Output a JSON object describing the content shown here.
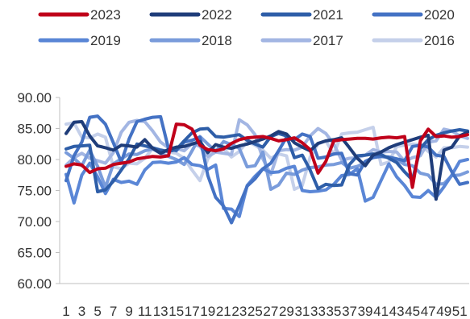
{
  "chart_data": {
    "type": "line",
    "title": "",
    "xlabel": "",
    "ylabel": "",
    "ylim": [
      60,
      90
    ],
    "yticks": [
      "60.00",
      "65.00",
      "70.00",
      "75.00",
      "80.00",
      "85.00",
      "90.00"
    ],
    "x": [
      1,
      2,
      3,
      4,
      5,
      6,
      7,
      8,
      9,
      10,
      11,
      12,
      13,
      14,
      15,
      16,
      17,
      18,
      19,
      20,
      21,
      22,
      23,
      24,
      25,
      26,
      27,
      28,
      29,
      30,
      31,
      32,
      33,
      34,
      35,
      36,
      37,
      38,
      39,
      40,
      41,
      42,
      43,
      44,
      45,
      46,
      47,
      48,
      49,
      50,
      51,
      52
    ],
    "xticks": [
      "1",
      "3",
      "5",
      "7",
      "9",
      "11",
      "13",
      "15",
      "17",
      "19",
      "21",
      "23",
      "25",
      "27",
      "29",
      "31",
      "33",
      "35",
      "37",
      "39",
      "41",
      "43",
      "45",
      "47",
      "49",
      "51"
    ],
    "grid": false,
    "legend_position": "top",
    "series": [
      {
        "name": "2023",
        "color": "#c0001a",
        "values": [
          78.9,
          79.3,
          79.1,
          77.9,
          78.5,
          78.6,
          79.2,
          79.4,
          79.6,
          80.1,
          80.3,
          80.5,
          80.4,
          80.6,
          85.7,
          85.6,
          84.9,
          82.3,
          81.6,
          81.4,
          81.7,
          82.6,
          83.2,
          83.5,
          83.6,
          83.7,
          83.4,
          83.0,
          83.2,
          83.5,
          82.7,
          81.6,
          77.8,
          79.7,
          83.0,
          83.2,
          83.3,
          83.4,
          83.4,
          83.3,
          83.5,
          83.6,
          83.5,
          83.7,
          75.5,
          83.0,
          84.9,
          83.7,
          83.8,
          83.6,
          83.7,
          84.0
        ]
      },
      {
        "name": "2022",
        "color": "#1f3d7a",
        "values": [
          84.2,
          86.0,
          86.1,
          83.8,
          82.2,
          81.9,
          81.5,
          82.3,
          82.2,
          82.0,
          83.2,
          81.8,
          81.0,
          81.6,
          82.0,
          82.1,
          82.5,
          82.9,
          81.1,
          82.4,
          82.0,
          81.8,
          82.2,
          82.5,
          82.9,
          83.3,
          83.8,
          84.5,
          84.1,
          82.7,
          82.0,
          81.4,
          82.6,
          83.0,
          83.2,
          83.5,
          81.9,
          80.2,
          79.0,
          80.7,
          81.2,
          81.9,
          82.4,
          82.8,
          83.2,
          83.6,
          83.9,
          73.6,
          81.5,
          82.0,
          83.8,
          84.4
        ]
      },
      {
        "name": "2021",
        "color": "#2e5ea8",
        "values": [
          81.7,
          82.1,
          82.2,
          82.3,
          74.8,
          75.1,
          76.5,
          78.3,
          80.1,
          82.5,
          82.2,
          81.9,
          81.5,
          81.3,
          81.6,
          83.0,
          84.3,
          84.9,
          85.0,
          83.7,
          83.6,
          83.8,
          84.0,
          83.1,
          82.5,
          82.0,
          83.7,
          84.2,
          83.8,
          80.3,
          80.7,
          78.3,
          75.3,
          76.0,
          75.8,
          75.9,
          79.2,
          80.6,
          80.7,
          80.9,
          80.8,
          80.2,
          79.5,
          78.0,
          76.7,
          81.8,
          83.2,
          83.9,
          84.3,
          84.6,
          84.8,
          84.6
        ]
      },
      {
        "name": "2020",
        "color": "#4472c4",
        "values": [
          76.6,
          80.6,
          82.8,
          86.8,
          87.0,
          85.7,
          82.7,
          79.6,
          83.3,
          86.1,
          86.5,
          86.8,
          86.9,
          81.8,
          81.4,
          82.8,
          83.1,
          83.6,
          77.4,
          73.9,
          72.5,
          69.8,
          72.6,
          75.7,
          76.9,
          78.5,
          79.4,
          81.4,
          83.6,
          83.2,
          84.1,
          83.7,
          80.2,
          80.4,
          80.9,
          81.0,
          77.7,
          77.5,
          79.7,
          80.3,
          80.5,
          80.4,
          80.1,
          79.8,
          82.1,
          82.3,
          82.0,
          80.7,
          80.5,
          78.0,
          76.0,
          76.3
        ]
      },
      {
        "name": "2019",
        "color": "#5a86d6",
        "values": [
          77.6,
          73.0,
          77.5,
          79.4,
          77.2,
          74.5,
          76.8,
          76.3,
          76.5,
          76.0,
          78.3,
          79.5,
          79.6,
          79.4,
          79.6,
          80.3,
          79.2,
          79.0,
          78.4,
          79.1,
          72.1,
          72.0,
          70.8,
          75.8,
          77.3,
          78.5,
          77.9,
          78.0,
          78.6,
          78.9,
          75.0,
          74.8,
          74.9,
          75.1,
          76.0,
          77.4,
          77.6,
          78.5,
          73.3,
          73.9,
          76.6,
          79.3,
          77.2,
          75.8,
          74.0,
          73.9,
          75.0,
          73.9,
          75.6,
          77.5,
          79.7,
          80.0
        ]
      },
      {
        "name": "2018",
        "color": "#7a9cdb",
        "values": [
          81.1,
          80.2,
          79.0,
          81.5,
          78.9,
          75.5,
          79.3,
          80.1,
          80.9,
          80.8,
          81.4,
          81.7,
          81.0,
          80.5,
          80.0,
          79.2,
          81.4,
          83.7,
          82.5,
          81.3,
          82.9,
          82.4,
          81.8,
          78.8,
          79.0,
          81.2,
          75.2,
          75.9,
          77.8,
          77.6,
          78.3,
          78.7,
          78.8,
          79.1,
          79.2,
          79.5,
          78.6,
          78.9,
          79.5,
          80.4,
          80.5,
          80.3,
          80.0,
          79.2,
          79.0,
          77.8,
          77.5,
          76.0,
          76.1,
          77.4,
          77.5,
          78.0
        ]
      },
      {
        "name": "2017",
        "color": "#a3b6e3",
        "values": [
          79.1,
          80.3,
          81.0,
          80.2,
          79.8,
          79.4,
          81.1,
          84.4,
          86.0,
          86.3,
          86.1,
          84.6,
          82.8,
          81.9,
          81.8,
          81.4,
          82.6,
          82.1,
          80.5,
          81.2,
          81.0,
          80.8,
          86.4,
          85.6,
          84.0,
          80.1,
          77.6,
          81.4,
          81.6,
          81.5,
          82.0,
          83.8,
          85.0,
          84.2,
          82.5,
          79.9,
          80.2,
          80.3,
          80.7,
          81.6,
          81.2,
          81.3,
          81.2,
          79.7,
          80.3,
          80.6,
          82.8,
          83.0,
          84.9,
          84.6,
          83.8,
          83.4
        ]
      },
      {
        "name": "2016",
        "color": "#c5d0ea",
        "values": [
          85.7,
          85.9,
          83.6,
          83.5,
          84.1,
          83.6,
          78.8,
          78.5,
          79.4,
          79.3,
          80.2,
          81.8,
          81.6,
          81.2,
          81.0,
          80.2,
          78.3,
          76.6,
          80.1,
          81.6,
          81.8,
          80.4,
          81.3,
          82.9,
          82.3,
          81.5,
          80.2,
          80.9,
          80.6,
          75.2,
          75.8,
          80.4,
          82.5,
          83.0,
          80.8,
          84.1,
          84.3,
          84.4,
          84.8,
          85.2,
          79.2,
          79.6,
          82.1,
          82.3,
          82.5,
          82.4,
          81.3,
          80.4,
          81.9,
          81.9,
          82.1,
          82.0
        ]
      }
    ]
  }
}
